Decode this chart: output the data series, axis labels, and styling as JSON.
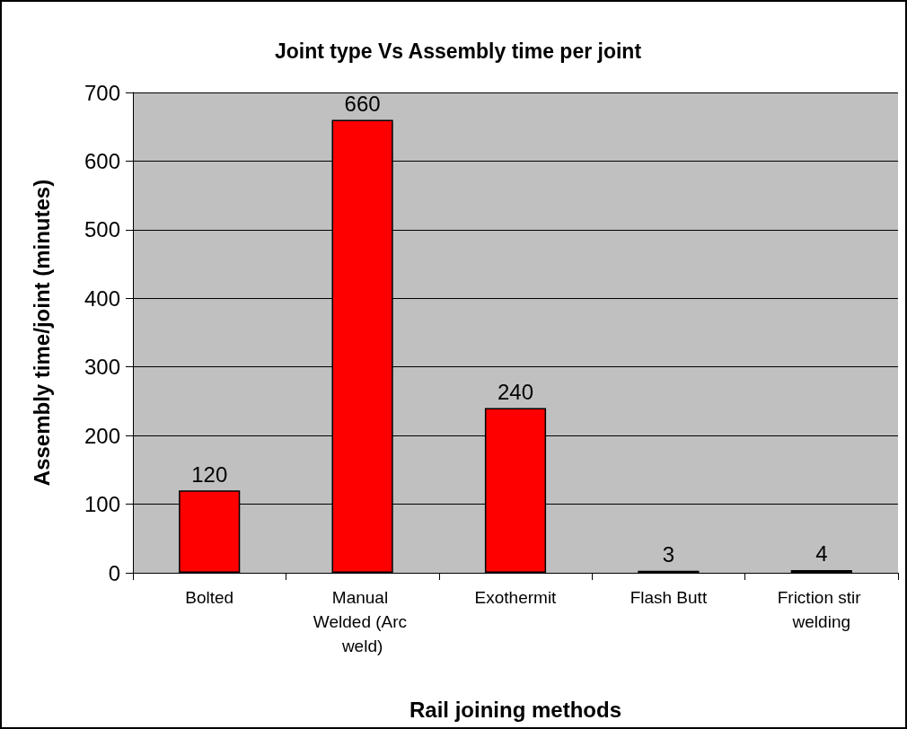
{
  "chart_data": {
    "type": "bar",
    "title": "Joint type Vs Assembly time per joint",
    "xlabel": "Rail joining methods",
    "ylabel": "Assembly time/joint (minutes)",
    "categories": [
      "Bolted",
      "Manual Welded (Arc weld)",
      "Exothermit",
      "Flash Butt",
      "Friction stir welding"
    ],
    "values": [
      120,
      660,
      240,
      3,
      4
    ],
    "color": "#ff0000",
    "ylim": [
      0,
      700
    ],
    "yticks": [
      0,
      100,
      200,
      300,
      400,
      500,
      600,
      700
    ],
    "grid": "y",
    "data_labels": true
  }
}
